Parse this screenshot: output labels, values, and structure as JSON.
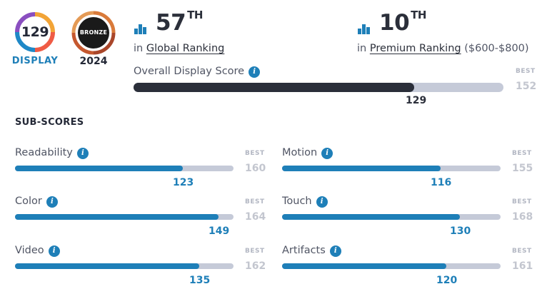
{
  "badges": {
    "display_score": "129",
    "display_label": "DISPLAY",
    "medal_label": "BRONZE",
    "medal_year": "2024"
  },
  "rankings": [
    {
      "number": "57",
      "suffix": "TH",
      "prefix": "in",
      "link": "Global Ranking",
      "extra": ""
    },
    {
      "number": "10",
      "suffix": "TH",
      "prefix": "in",
      "link": "Premium Ranking",
      "extra": "($600-$800)"
    }
  ],
  "overall": {
    "title": "Overall Display Score",
    "info_glyph": "i",
    "best_label": "BEST",
    "score": 129,
    "best": 152,
    "fill_color": "#2b2f3a"
  },
  "subscores_title": "SUB-SCORES",
  "subscores": [
    {
      "label": "Readability",
      "score": 123,
      "best": 160
    },
    {
      "label": "Motion",
      "score": 116,
      "best": 155
    },
    {
      "label": "Color",
      "score": 149,
      "best": 164
    },
    {
      "label": "Touch",
      "score": 130,
      "best": 168
    },
    {
      "label": "Video",
      "score": 135,
      "best": 162
    },
    {
      "label": "Artifacts",
      "score": 120,
      "best": 161
    }
  ],
  "sub_best_label": "BEST",
  "colors": {
    "accent": "#1e7fb8",
    "track": "#c5cad8",
    "bronze": "#b8643a"
  }
}
